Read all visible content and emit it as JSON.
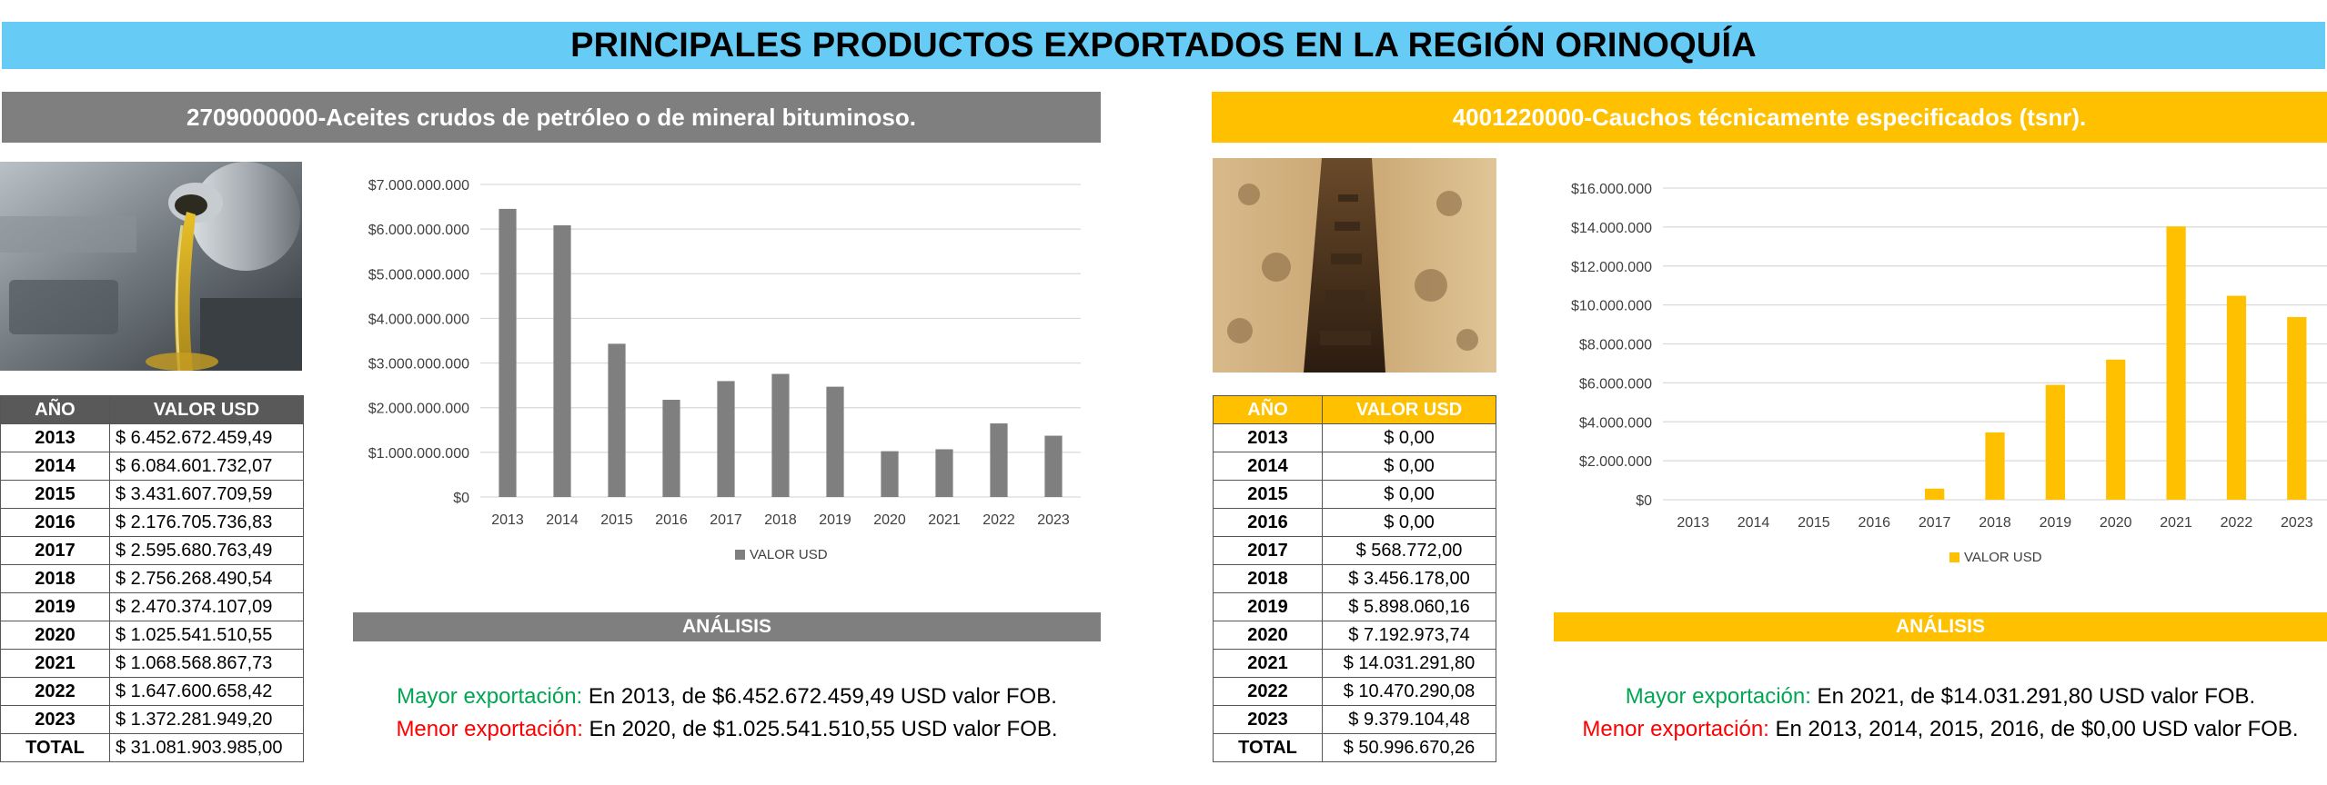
{
  "title": "PRINCIPALES PRODUCTOS EXPORTADOS EN LA REGIÓN ORINOQUÍA",
  "colors": {
    "title_bg": "#66ccf5",
    "gray": "#7f7f7f",
    "gold": "#ffc000",
    "max": "#00a651",
    "min": "#ff0000"
  },
  "left": {
    "header": "2709000000-Aceites crudos de petróleo o de mineral bituminoso.",
    "image": "oil-pouring-into-engine",
    "table": {
      "col_year": "AÑO",
      "col_value": "VALOR USD",
      "rows": [
        {
          "year": "2013",
          "value": "$ 6.452.672.459,49"
        },
        {
          "year": "2014",
          "value": "$ 6.084.601.732,07"
        },
        {
          "year": "2015",
          "value": "$ 3.431.607.709,59"
        },
        {
          "year": "2016",
          "value": "$ 2.176.705.736,83"
        },
        {
          "year": "2017",
          "value": "$ 2.595.680.763,49"
        },
        {
          "year": "2018",
          "value": "$ 2.756.268.490,54"
        },
        {
          "year": "2019",
          "value": "$ 2.470.374.107,09"
        },
        {
          "year": "2020",
          "value": "$ 1.025.541.510,55"
        },
        {
          "year": "2021",
          "value": "$ 1.068.568.867,73"
        },
        {
          "year": "2022",
          "value": "$ 1.647.600.658,42"
        },
        {
          "year": "2023",
          "value": "$ 1.372.281.949,20"
        }
      ],
      "total_label": "TOTAL",
      "total_value": "$ 31.081.903.985,00"
    },
    "analysis_title": "ANÁLISIS",
    "max_label": "Mayor exportación:",
    "max_text": " En 2013, de $6.452.672.459,49 USD valor FOB.",
    "min_label": "Menor exportación:",
    "min_text": " En 2020, de $1.025.541.510,55 USD valor FOB."
  },
  "right": {
    "header": "4001220000-Cauchos técnicamente especificados (tsnr).",
    "image": "rubber-tree-bark",
    "table": {
      "col_year": "AÑO",
      "col_value": "VALOR USD",
      "rows": [
        {
          "year": "2013",
          "value": "$ 0,00"
        },
        {
          "year": "2014",
          "value": "$ 0,00"
        },
        {
          "year": "2015",
          "value": "$ 0,00"
        },
        {
          "year": "2016",
          "value": "$ 0,00"
        },
        {
          "year": "2017",
          "value": "$ 568.772,00"
        },
        {
          "year": "2018",
          "value": "$ 3.456.178,00"
        },
        {
          "year": "2019",
          "value": "$ 5.898.060,16"
        },
        {
          "year": "2020",
          "value": "$ 7.192.973,74"
        },
        {
          "year": "2021",
          "value": "$ 14.031.291,80"
        },
        {
          "year": "2022",
          "value": "$ 10.470.290,08"
        },
        {
          "year": "2023",
          "value": "$ 9.379.104,48"
        }
      ],
      "total_label": "TOTAL",
      "total_value": "$ 50.996.670,26"
    },
    "analysis_title": "ANÁLISIS",
    "max_label": "Mayor exportación:",
    "max_text": " En 2021, de $14.031.291,80 USD valor FOB.",
    "min_label": "Menor exportación:",
    "min_text": " En 2013, 2014, 2015, 2016, de $0,00 USD valor FOB."
  },
  "chart_data": [
    {
      "type": "bar",
      "categories": [
        "2013",
        "2014",
        "2015",
        "2016",
        "2017",
        "2018",
        "2019",
        "2020",
        "2021",
        "2022",
        "2023"
      ],
      "series": [
        {
          "name": "VALOR USD",
          "color": "#7f7f7f",
          "values": [
            6452672459.49,
            6084601732.07,
            3431607709.59,
            2176705736.83,
            2595680763.49,
            2756268490.54,
            2470374107.09,
            1025541510.55,
            1068568867.73,
            1647600658.42,
            1372281949.2
          ]
        }
      ],
      "ylim": [
        0,
        7000000000
      ],
      "yticks": [
        "$0",
        "$1.000.000.000",
        "$2.000.000.000",
        "$3.000.000.000",
        "$4.000.000.000",
        "$5.000.000.000",
        "$6.000.000.000",
        "$7.000.000.000"
      ],
      "grid": true,
      "legend": "bottom"
    },
    {
      "type": "bar",
      "categories": [
        "2013",
        "2014",
        "2015",
        "2016",
        "2017",
        "2018",
        "2019",
        "2020",
        "2021",
        "2022",
        "2023"
      ],
      "series": [
        {
          "name": "VALOR USD",
          "color": "#ffc000",
          "values": [
            0,
            0,
            0,
            0,
            568772.0,
            3456178.0,
            5898060.16,
            7192973.74,
            14031291.8,
            10470290.08,
            9379104.48
          ]
        }
      ],
      "ylim": [
        0,
        16000000
      ],
      "yticks": [
        "$0",
        "$2.000.000",
        "$4.000.000",
        "$6.000.000",
        "$8.000.000",
        "$10.000.000",
        "$12.000.000",
        "$14.000.000",
        "$16.000.000"
      ],
      "grid": true,
      "legend": "bottom"
    }
  ]
}
